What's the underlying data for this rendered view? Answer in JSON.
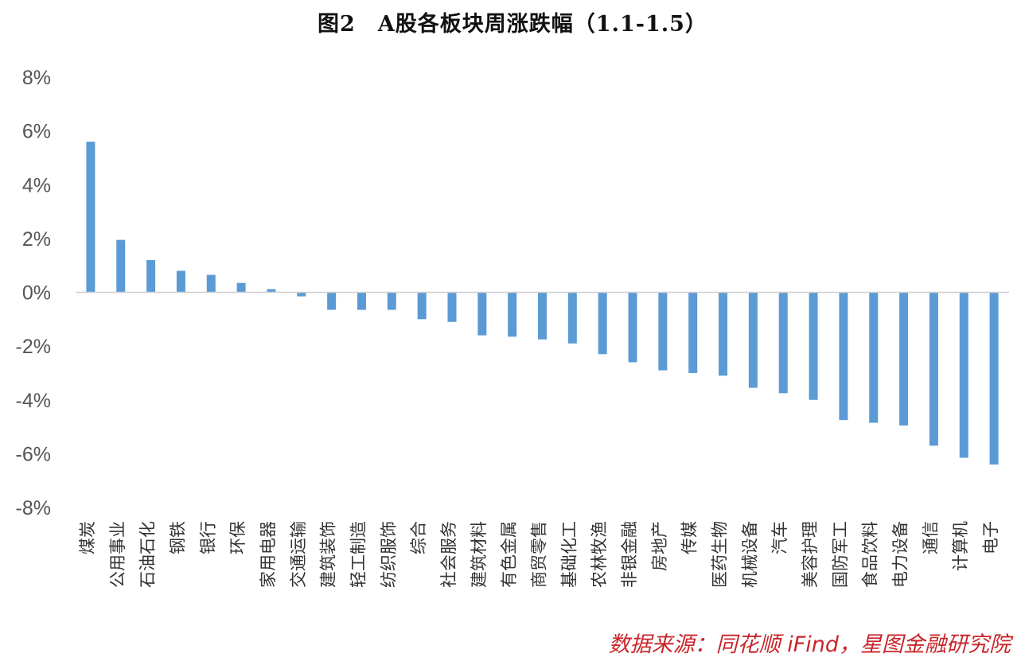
{
  "chart_data": {
    "type": "bar",
    "title": "图2　A股各板块周涨跌幅（1.1-1.5）",
    "source": "数据来源：同花顺 iFind，星图金融研究院",
    "xlabel": "",
    "ylabel": "",
    "ylim": [
      -8,
      8
    ],
    "yticks": [
      8,
      6,
      4,
      2,
      0,
      -2,
      -4,
      -6,
      -8
    ],
    "ytick_labels": [
      "8%",
      "6%",
      "4%",
      "2%",
      "0%",
      "-2%",
      "-4%",
      "-6%",
      "-8%"
    ],
    "grid": false,
    "color": "#5b9bd5",
    "categories": [
      "煤炭",
      "公用事业",
      "石油石化",
      "钢铁",
      "银行",
      "环保",
      "家用电器",
      "交通运输",
      "建筑装饰",
      "轻工制造",
      "纺织服饰",
      "综合",
      "社会服务",
      "建筑材料",
      "有色金属",
      "商贸零售",
      "基础化工",
      "农林牧渔",
      "非银金融",
      "房地产",
      "传媒",
      "医药生物",
      "机械设备",
      "汽车",
      "美容护理",
      "国防军工",
      "食品饮料",
      "电力设备",
      "通信",
      "计算机",
      "电子"
    ],
    "values": [
      5.6,
      1.95,
      1.2,
      0.8,
      0.65,
      0.35,
      0.12,
      -0.15,
      -0.65,
      -0.65,
      -0.65,
      -1.0,
      -1.1,
      -1.6,
      -1.65,
      -1.75,
      -1.9,
      -2.3,
      -2.6,
      -2.9,
      -3.0,
      -3.1,
      -3.55,
      -3.75,
      -4.0,
      -4.75,
      -4.85,
      -4.95,
      -5.7,
      -6.15,
      -6.4
    ]
  }
}
